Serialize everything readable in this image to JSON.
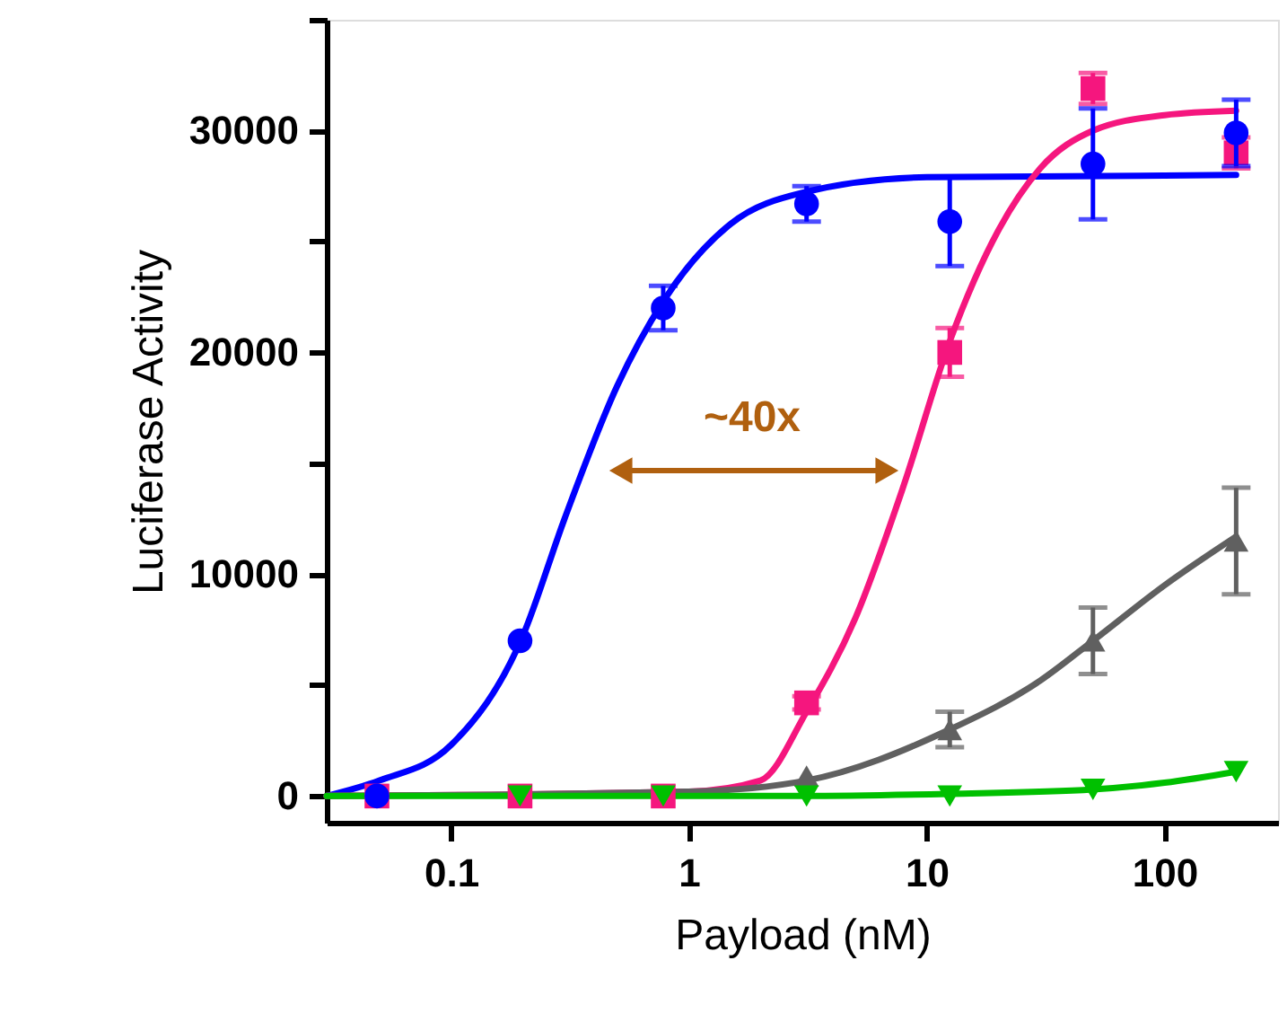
{
  "chart_data": {
    "type": "scatter",
    "xlabel": "Payload (nM)",
    "ylabel": "Luciferase Activity",
    "log": "x",
    "xlim": [
      0.03,
      300
    ],
    "xticks": [
      0.1,
      1,
      10,
      100
    ],
    "ylim": [
      -1200,
      35000
    ],
    "yticks": [
      0,
      {
        "value": 5000,
        "label": null
      },
      10000,
      {
        "value": 15000,
        "label": null
      },
      20000,
      {
        "value": 25000,
        "label": null
      },
      30000,
      {
        "value": 35000,
        "label": null
      }
    ],
    "grid": false,
    "x": [
      0.0488,
      0.195,
      0.78,
      3.125,
      12.5,
      50,
      200
    ],
    "series": [
      {
        "type": "line",
        "color": "#0000ff",
        "marker": "none",
        "line_style": "solid",
        "x": [
          0.03,
          0.05,
          0.1,
          0.2,
          0.3,
          0.5,
          0.78,
          1.5,
          3,
          10,
          200
        ],
        "values": [
          0,
          700,
          2300,
          7200,
          12500,
          18500,
          22300,
          25800,
          27200,
          27900,
          28000
        ]
      },
      {
        "type": "line",
        "color": "#f5167e",
        "marker": "none",
        "line_style": "solid",
        "x": [
          0.03,
          1,
          2,
          3.125,
          5,
          8,
          12.5,
          20,
          30,
          50,
          100,
          200
        ],
        "values": [
          0,
          200,
          700,
          3800,
          8000,
          14000,
          20500,
          25500,
          28300,
          30000,
          30700,
          30900
        ]
      },
      {
        "type": "line",
        "color": "#606060",
        "marker": "none",
        "line_style": "solid",
        "x": [
          0.03,
          1,
          3.125,
          12.5,
          30,
          50,
          100,
          200
        ],
        "values": [
          0,
          200,
          700,
          3000,
          5200,
          7000,
          9500,
          11700
        ]
      },
      {
        "type": "line",
        "color": "#00c000",
        "marker": "none",
        "line_style": "solid",
        "x": [
          0.03,
          3,
          12.5,
          50,
          100,
          200
        ],
        "values": [
          0,
          0,
          100,
          300,
          600,
          1100
        ]
      },
      {
        "type": "scatter",
        "color": "#f5167e",
        "marker": "square",
        "values": [
          0,
          0,
          0,
          4200,
          20000,
          31900,
          29000
        ],
        "errors": [
          null,
          null,
          null,
          300,
          1100,
          700,
          700
        ]
      },
      {
        "type": "scatter",
        "color": "#606060",
        "marker": "triangle",
        "values": [
          null,
          null,
          null,
          900,
          3000,
          7000,
          11500
        ],
        "errors": [
          null,
          null,
          null,
          null,
          800,
          1500,
          2400
        ]
      },
      {
        "type": "scatter",
        "color": "#00c000",
        "marker": "triangle-down",
        "values": [
          null,
          0,
          0,
          0,
          0,
          300,
          1100
        ]
      },
      {
        "type": "scatter",
        "color": "#0000ff",
        "marker": "circle",
        "values": [
          0,
          7000,
          22000,
          26700,
          25900,
          28500,
          29900
        ],
        "errors": [
          null,
          null,
          1000,
          800,
          2000,
          2500,
          1500
        ]
      }
    ],
    "annotations": [
      "~40x"
    ]
  }
}
